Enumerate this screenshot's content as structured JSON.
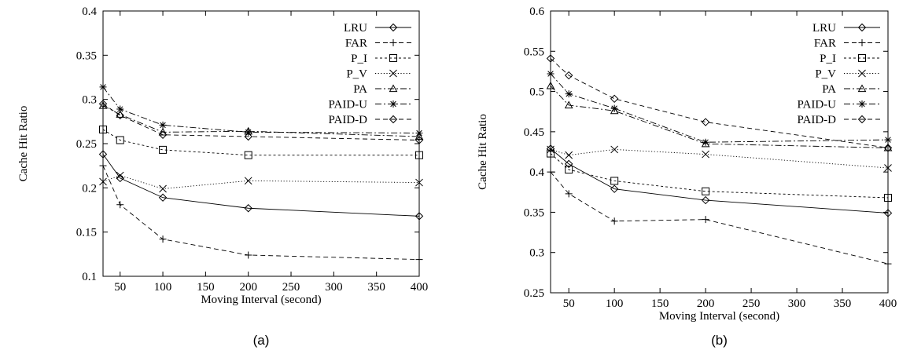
{
  "chart_data": [
    {
      "type": "line",
      "caption": "(a)",
      "xlabel": "Moving Interval (second)",
      "ylabel": "Cache Hit Ratio",
      "xlim": [
        30,
        400
      ],
      "ylim": [
        0.1,
        0.4
      ],
      "xticks": [
        50,
        100,
        150,
        200,
        250,
        300,
        350,
        400
      ],
      "yticks": [
        0.1,
        0.15,
        0.2,
        0.25,
        0.3,
        0.35,
        0.4
      ],
      "grid": false,
      "legend_position": "top-right",
      "x": [
        30,
        50,
        100,
        200,
        400
      ],
      "series": [
        {
          "name": "LRU",
          "marker": "diamond",
          "dash": "solid",
          "values": [
            0.238,
            0.211,
            0.189,
            0.177,
            0.168
          ]
        },
        {
          "name": "FAR",
          "marker": "plus",
          "dash": "dashed",
          "values": [
            0.225,
            0.181,
            0.142,
            0.124,
            0.119
          ]
        },
        {
          "name": "P_I",
          "marker": "square",
          "dash": "short-dashed",
          "values": [
            0.266,
            0.254,
            0.243,
            0.237,
            0.237
          ]
        },
        {
          "name": "P_V",
          "marker": "cross",
          "dash": "dotted",
          "values": [
            0.207,
            0.214,
            0.199,
            0.208,
            0.206
          ]
        },
        {
          "name": "PA",
          "marker": "triangle",
          "dash": "dash-dot",
          "values": [
            0.293,
            0.283,
            0.263,
            0.264,
            0.258
          ]
        },
        {
          "name": "PAID-U",
          "marker": "star",
          "dash": "dash-dot",
          "values": [
            0.314,
            0.289,
            0.271,
            0.263,
            0.262
          ]
        },
        {
          "name": "PAID-D",
          "marker": "diamond",
          "dash": "dashed",
          "values": [
            0.295,
            0.282,
            0.26,
            0.258,
            0.254
          ]
        }
      ]
    },
    {
      "type": "line",
      "caption": "(b)",
      "xlabel": "Moving Interval (second)",
      "ylabel": "Cache Hit Ratio",
      "xlim": [
        30,
        400
      ],
      "ylim": [
        0.25,
        0.6
      ],
      "xticks": [
        50,
        100,
        150,
        200,
        250,
        300,
        350,
        400
      ],
      "yticks": [
        0.25,
        0.3,
        0.35,
        0.4,
        0.45,
        0.5,
        0.55,
        0.6
      ],
      "grid": false,
      "legend_position": "top-right",
      "x": [
        30,
        50,
        100,
        200,
        400
      ],
      "series": [
        {
          "name": "LRU",
          "marker": "diamond",
          "dash": "solid",
          "values": [
            0.429,
            0.41,
            0.379,
            0.365,
            0.349
          ]
        },
        {
          "name": "FAR",
          "marker": "plus",
          "dash": "dashed",
          "values": [
            0.4,
            0.373,
            0.339,
            0.341,
            0.286
          ]
        },
        {
          "name": "P_I",
          "marker": "square",
          "dash": "short-dashed",
          "values": [
            0.423,
            0.403,
            0.389,
            0.376,
            0.368
          ]
        },
        {
          "name": "P_V",
          "marker": "cross",
          "dash": "dotted",
          "values": [
            0.428,
            0.421,
            0.428,
            0.422,
            0.405
          ]
        },
        {
          "name": "PA",
          "marker": "triangle",
          "dash": "dash-dot",
          "values": [
            0.507,
            0.483,
            0.476,
            0.435,
            0.43
          ]
        },
        {
          "name": "PAID-U",
          "marker": "star",
          "dash": "dash-dot",
          "values": [
            0.522,
            0.497,
            0.479,
            0.437,
            0.44
          ]
        },
        {
          "name": "PAID-D",
          "marker": "diamond",
          "dash": "dashed",
          "values": [
            0.541,
            0.52,
            0.491,
            0.462,
            0.43
          ]
        }
      ]
    }
  ]
}
